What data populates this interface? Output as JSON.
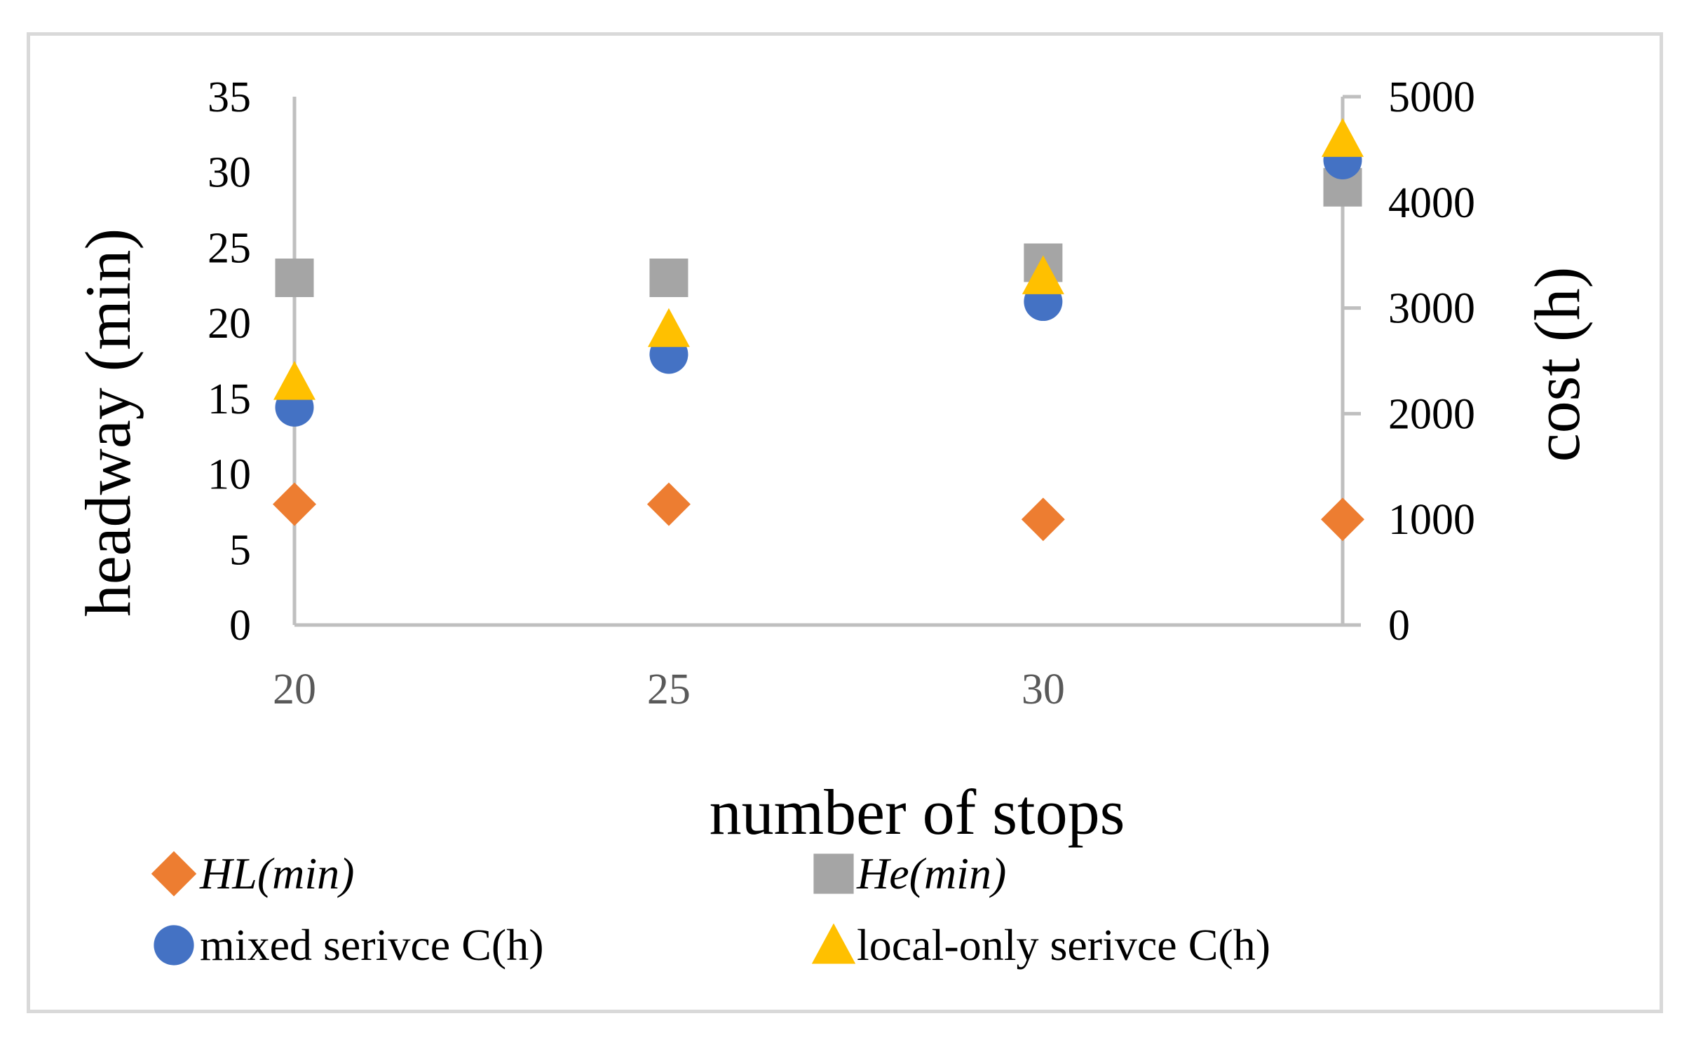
{
  "chart_data": {
    "type": "scatter",
    "x": [
      20,
      25,
      30,
      34
    ],
    "x_tick_labels": [
      "20",
      "25",
      "30"
    ],
    "xlabel": "number of stops",
    "ylabel_left": "headway (min)",
    "ylabel_right": "cost (h)",
    "ylim_left": [
      0,
      35
    ],
    "ylim_right": [
      0,
      5000
    ],
    "y_ticks_left": [
      "0",
      "5",
      "10",
      "15",
      "20",
      "25",
      "30",
      "35"
    ],
    "y_ticks_right": [
      "0",
      "1000",
      "2000",
      "3000",
      "4000",
      "5000"
    ],
    "grid": false,
    "legend_position": "bottom",
    "series": [
      {
        "name": "HL(min)",
        "axis": "left",
        "marker": "diamond",
        "color": "#ED7D31",
        "italic": true,
        "values": [
          8,
          8,
          7,
          7
        ]
      },
      {
        "name": "He(min)",
        "axis": "left",
        "marker": "square",
        "color": "#A5A5A5",
        "italic": true,
        "values": [
          23,
          23,
          24,
          29
        ]
      },
      {
        "name": "mixed serivce C(h)",
        "axis": "right",
        "marker": "circle",
        "color": "#4472C4",
        "italic": false,
        "values": [
          2060,
          2560,
          3060,
          4400
        ]
      },
      {
        "name": "local-only serivce C(h)",
        "axis": "right",
        "marker": "triangle",
        "color": "#FFC000",
        "italic": false,
        "values": [
          2300,
          2800,
          3300,
          4600
        ]
      }
    ]
  }
}
